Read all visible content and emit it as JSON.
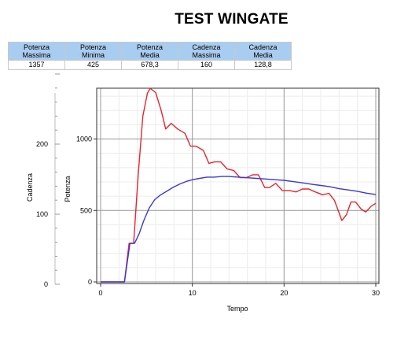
{
  "title": "TEST WINGATE",
  "stats_table": {
    "headers": [
      [
        "Potenza",
        "Massima"
      ],
      [
        "Potenza",
        "Minima"
      ],
      [
        "Potenza",
        "Media"
      ],
      [
        "Cadenza",
        "Massima"
      ],
      [
        "Cadenza",
        "Media"
      ]
    ],
    "values": [
      "1357",
      "425",
      "678,3",
      "160",
      "128,8"
    ]
  },
  "chart_data": {
    "type": "line",
    "xlabel": "Tempo",
    "ylabel_left": "Cadenza",
    "ylabel_right": "Potenza",
    "x_ticks": [
      "0",
      "10",
      "20",
      "30"
    ],
    "cadenza_ticks": [
      "0",
      "100",
      "200"
    ],
    "potenza_ticks": [
      "0",
      "500",
      "1000"
    ],
    "xlim": [
      0,
      30
    ],
    "cadenza_ylim": [
      0,
      300
    ],
    "potenza_ylim": [
      0,
      1350
    ],
    "grid": true,
    "series": [
      {
        "axis": "potenza",
        "color": "#e8242c",
        "points": [
          [
            0,
            0
          ],
          [
            2.6,
            0
          ],
          [
            3.1,
            270
          ],
          [
            3.6,
            270
          ],
          [
            4.1,
            750
          ],
          [
            4.6,
            1160
          ],
          [
            5.1,
            1320
          ],
          [
            5.4,
            1355
          ],
          [
            6.0,
            1325
          ],
          [
            6.6,
            1200
          ],
          [
            7.1,
            1070
          ],
          [
            7.7,
            1110
          ],
          [
            8.4,
            1070
          ],
          [
            9.2,
            1040
          ],
          [
            9.8,
            950
          ],
          [
            10.4,
            950
          ],
          [
            11.2,
            920
          ],
          [
            11.8,
            830
          ],
          [
            12.4,
            840
          ],
          [
            13.1,
            840
          ],
          [
            13.8,
            790
          ],
          [
            14.5,
            780
          ],
          [
            15.2,
            730
          ],
          [
            15.9,
            730
          ],
          [
            16.6,
            750
          ],
          [
            17.2,
            750
          ],
          [
            17.9,
            660
          ],
          [
            18.4,
            660
          ],
          [
            19.1,
            690
          ],
          [
            19.8,
            640
          ],
          [
            20.6,
            640
          ],
          [
            21.3,
            630
          ],
          [
            22.0,
            650
          ],
          [
            22.7,
            650
          ],
          [
            23.4,
            630
          ],
          [
            24.2,
            610
          ],
          [
            24.9,
            620
          ],
          [
            25.5,
            570
          ],
          [
            25.9,
            500
          ],
          [
            26.3,
            430
          ],
          [
            26.8,
            470
          ],
          [
            27.3,
            560
          ],
          [
            27.8,
            560
          ],
          [
            28.4,
            510
          ],
          [
            28.9,
            490
          ],
          [
            29.5,
            530
          ],
          [
            30.0,
            550
          ]
        ]
      },
      {
        "axis": "cadenza",
        "color": "#3a3ad0",
        "points": [
          [
            0,
            0
          ],
          [
            2.6,
            0
          ],
          [
            3.2,
            60
          ],
          [
            3.7,
            60
          ],
          [
            4.2,
            75
          ],
          [
            4.7,
            95
          ],
          [
            5.3,
            115
          ],
          [
            5.9,
            128
          ],
          [
            6.5,
            135
          ],
          [
            7.2,
            141
          ],
          [
            7.9,
            147
          ],
          [
            8.6,
            152
          ],
          [
            9.3,
            156
          ],
          [
            10.0,
            159
          ],
          [
            10.8,
            161
          ],
          [
            11.6,
            163
          ],
          [
            12.4,
            163
          ],
          [
            13.2,
            164
          ],
          [
            14.0,
            164
          ],
          [
            15.0,
            163
          ],
          [
            16.0,
            162
          ],
          [
            17.0,
            161
          ],
          [
            18.0,
            160
          ],
          [
            19.0,
            159
          ],
          [
            20.0,
            158
          ],
          [
            21.0,
            156
          ],
          [
            22.0,
            154
          ],
          [
            23.0,
            152
          ],
          [
            24.0,
            150
          ],
          [
            25.0,
            148
          ],
          [
            26.0,
            145
          ],
          [
            27.0,
            143
          ],
          [
            28.0,
            141
          ],
          [
            29.0,
            138
          ],
          [
            30.0,
            136
          ]
        ]
      }
    ]
  }
}
